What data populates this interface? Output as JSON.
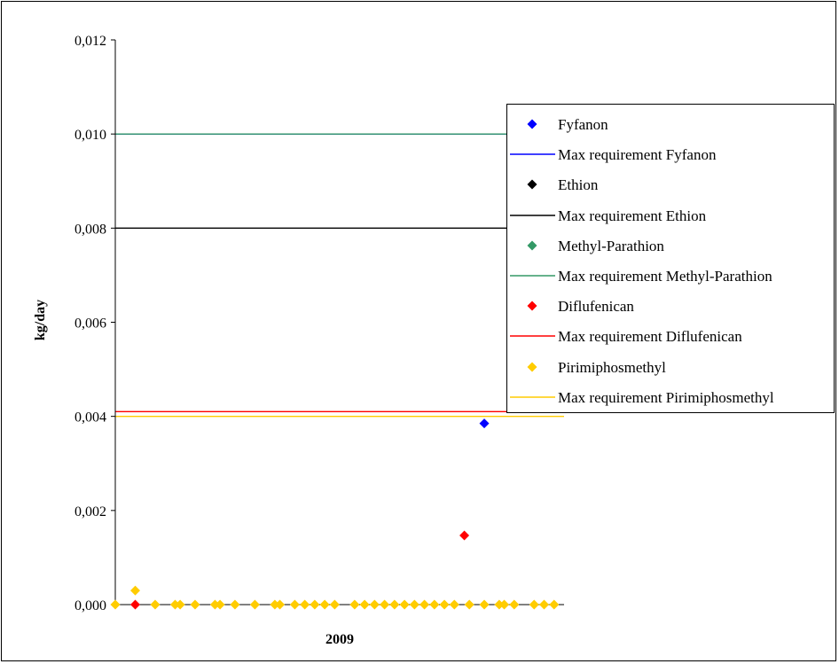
{
  "chart_data": {
    "type": "scatter",
    "title": "",
    "xlabel": "2009",
    "ylabel": "kg/day",
    "ylim": [
      0,
      0.012
    ],
    "y_ticks": [
      "0,000",
      "0,002",
      "0,004",
      "0,006",
      "0,008",
      "0,010",
      "0,012"
    ],
    "y_tick_values": [
      0,
      0.002,
      0.004,
      0.006,
      0.008,
      0.01,
      0.012
    ],
    "x_range": [
      0,
      45
    ],
    "grid": false,
    "legend_position": "right",
    "series": [
      {
        "name": "Fyfanon",
        "kind": "points",
        "marker": "diamond",
        "color": "#0000ff",
        "points": [
          [
            37,
            0.00385
          ]
        ]
      },
      {
        "name": "Max requirement Fyfanon",
        "kind": "line",
        "color": "#0000ff",
        "value": 0.01
      },
      {
        "name": "Ethion",
        "kind": "points",
        "marker": "diamond",
        "color": "#000000",
        "points": []
      },
      {
        "name": "Max requirement Ethion",
        "kind": "line",
        "color": "#000000",
        "value": 0.008
      },
      {
        "name": "Methyl-Parathion",
        "kind": "points",
        "marker": "diamond",
        "color": "#339966",
        "points": []
      },
      {
        "name": "Max requirement Methyl-Parathion",
        "kind": "line",
        "color": "#339966",
        "value": 0.01
      },
      {
        "name": "Diflufenican",
        "kind": "points",
        "marker": "diamond",
        "color": "#ff0000",
        "points": [
          [
            2,
            0
          ],
          [
            35,
            0.00147
          ]
        ]
      },
      {
        "name": "Max requirement Diflufenican",
        "kind": "line",
        "color": "#ff0000",
        "value": 0.0041
      },
      {
        "name": "Pirimiphosmethyl",
        "kind": "points",
        "marker": "diamond",
        "color": "#ffcc00",
        "points": [
          [
            0,
            0
          ],
          [
            2,
            0.0003
          ],
          [
            4,
            0
          ],
          [
            6,
            0
          ],
          [
            6.5,
            0
          ],
          [
            8,
            0
          ],
          [
            10,
            0
          ],
          [
            10.5,
            0
          ],
          [
            12,
            0
          ],
          [
            14,
            0
          ],
          [
            16,
            0
          ],
          [
            16.5,
            0
          ],
          [
            18,
            0
          ],
          [
            19,
            0
          ],
          [
            20,
            0
          ],
          [
            21,
            0
          ],
          [
            22,
            0
          ],
          [
            24,
            0
          ],
          [
            25,
            0
          ],
          [
            26,
            0
          ],
          [
            27,
            0
          ],
          [
            28,
            0
          ],
          [
            29,
            0
          ],
          [
            30,
            0
          ],
          [
            31,
            0
          ],
          [
            32,
            0
          ],
          [
            33,
            0
          ],
          [
            34,
            0
          ],
          [
            35.5,
            0
          ],
          [
            37,
            0
          ],
          [
            38.5,
            0
          ],
          [
            39,
            0
          ],
          [
            40,
            0
          ],
          [
            42,
            0
          ],
          [
            43,
            0
          ],
          [
            44,
            0
          ]
        ]
      },
      {
        "name": "Max requirement Pirimiphosmethyl",
        "kind": "line",
        "color": "#ffcc00",
        "value": 0.004
      }
    ]
  }
}
